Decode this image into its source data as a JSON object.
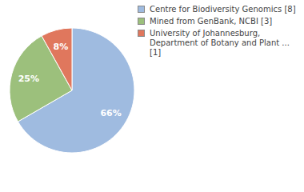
{
  "chart_data": {
    "type": "pie",
    "categories": [
      "Centre for Biodiversity Genomics [8]",
      "Mined from GenBank, NCBI [3]",
      "University of Johannesburg, Department of Botany and Plant ... [1]"
    ],
    "values": [
      66,
      25,
      8
    ],
    "value_labels": [
      "66%",
      "25%",
      "8%"
    ],
    "colors": [
      "#9fbbe0",
      "#9cc07c",
      "#e0775d"
    ],
    "data_labels": true,
    "legend": "right"
  }
}
